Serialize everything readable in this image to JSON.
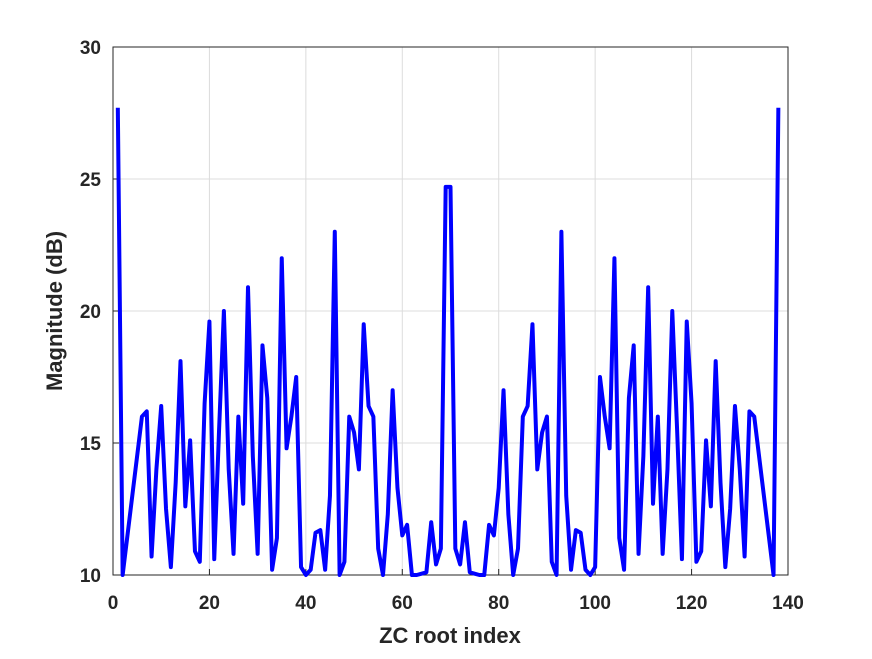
{
  "chart_data": {
    "type": "line",
    "x_label": "ZC root index",
    "y_label": "Magnitude (dB)",
    "x": [
      1,
      2,
      3,
      4,
      5,
      6,
      7,
      8,
      9,
      10,
      11,
      12,
      13,
      14,
      15,
      16,
      17,
      18,
      19,
      20,
      21,
      22,
      23,
      24,
      25,
      26,
      27,
      28,
      29,
      30,
      31,
      32,
      33,
      34,
      35,
      36,
      37,
      38,
      39,
      40,
      41,
      42,
      43,
      44,
      45,
      46,
      47,
      48,
      49,
      50,
      51,
      52,
      53,
      54,
      55,
      56,
      57,
      58,
      59,
      60,
      61,
      62,
      63,
      64,
      65,
      66,
      67,
      68,
      69,
      70,
      71,
      72,
      73,
      74,
      75,
      76,
      77,
      78,
      79,
      80,
      81,
      82,
      83,
      84,
      85,
      86,
      87,
      88,
      89,
      90,
      91,
      92,
      93,
      94,
      95,
      96,
      97,
      98,
      99,
      100,
      101,
      102,
      103,
      104,
      105,
      106,
      107,
      108,
      109,
      110,
      111,
      112,
      113,
      114,
      115,
      116,
      117,
      118,
      119,
      120,
      121,
      122,
      123,
      124,
      125,
      126,
      127,
      128,
      129,
      130,
      131,
      132,
      133,
      134,
      135,
      136,
      137,
      138
    ],
    "series": [
      {
        "name": "Magnitude",
        "color": "#0000ff",
        "values": [
          27.7,
          10,
          11.5,
          13,
          14.5,
          16,
          16.2,
          10.7,
          14,
          16.4,
          12.5,
          10.3,
          13.5,
          18.1,
          12.6,
          15.1,
          10.9,
          10.5,
          16.5,
          19.6,
          10.6,
          15.5,
          20,
          14,
          10.8,
          16,
          12.7,
          20.9,
          14.5,
          10.8,
          18.7,
          16.7,
          10.2,
          11.4,
          22,
          14.8,
          16,
          17.5,
          10.3,
          10,
          10.2,
          11.6,
          11.7,
          10.2,
          13,
          23,
          10,
          10.5,
          16,
          15.4,
          14,
          19.5,
          16.4,
          16,
          11,
          10,
          12.3,
          17,
          13.3,
          11.5,
          11.9,
          10,
          10,
          10.05,
          10.1,
          12,
          10.4,
          11,
          24.7,
          24.7,
          11,
          10.4,
          12,
          10.1,
          10.05,
          10,
          10,
          11.9,
          11.5,
          13.3,
          17,
          12.3,
          10,
          11,
          16,
          16.4,
          19.5,
          14,
          15.4,
          16,
          10.5,
          10,
          23,
          13,
          10.2,
          11.7,
          11.6,
          10.2,
          10,
          10.3,
          17.5,
          16,
          14.8,
          22,
          11.4,
          10.2,
          16.7,
          18.7,
          10.8,
          14.5,
          20.9,
          12.7,
          16,
          10.8,
          14,
          20,
          15.5,
          10.6,
          19.6,
          16.5,
          10.5,
          10.9,
          15.1,
          12.6,
          18.1,
          13.5,
          10.3,
          12.5,
          16.4,
          14,
          10.7,
          16.2,
          16,
          14.5,
          13,
          11.5,
          10,
          27.7
        ]
      }
    ],
    "xlim": [
      0,
      140
    ],
    "xticks": [
      0,
      20,
      40,
      60,
      80,
      100,
      120,
      140
    ],
    "ylim": [
      10,
      30
    ],
    "yticks": [
      10,
      15,
      20,
      25,
      30
    ],
    "grid": true
  }
}
